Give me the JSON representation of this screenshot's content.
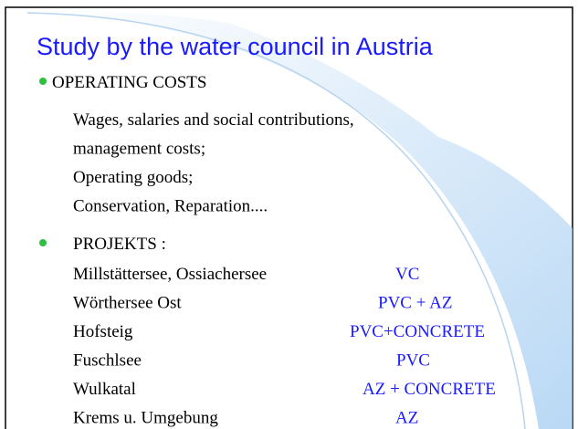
{
  "title": "Study by the water council in Austria",
  "operating_costs": {
    "heading": "OPERATING COSTS",
    "lines": [
      "Wages, salaries and social contributions,",
      "management costs;",
      "Operating goods;",
      "Conservation,  Reparation...."
    ]
  },
  "projects": {
    "heading": "PROJEKTS :",
    "rows": [
      {
        "name": "Millstättersee, Ossiachersee",
        "material": "VC"
      },
      {
        "name": "Wörthersee Ost",
        "material": "PVC + AZ"
      },
      {
        "name": "Hofsteig",
        "material": "PVC+CONCRETE"
      },
      {
        "name": "Fuschlsee",
        "material": "PVC"
      },
      {
        "name": "Wulkatal",
        "material": "AZ + CONCRETE"
      },
      {
        "name": "Krems  u. Umgebung",
        "material": "AZ"
      }
    ]
  }
}
